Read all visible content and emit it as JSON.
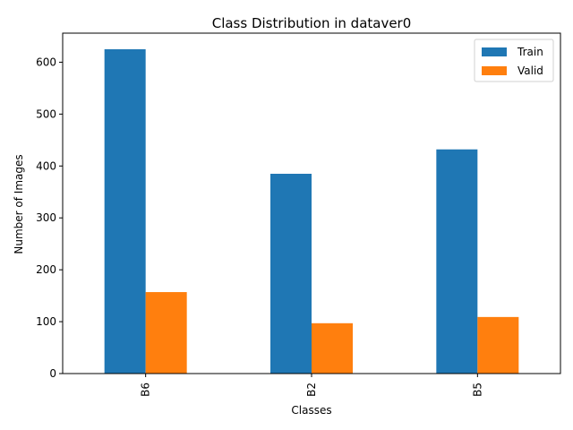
{
  "chart_data": {
    "type": "bar",
    "title": "Class Distribution in dataver0",
    "xlabel": "Classes",
    "ylabel": "Number of Images",
    "categories": [
      "B6",
      "B2",
      "B5"
    ],
    "series": [
      {
        "name": "Train",
        "values": [
          625,
          385,
          432
        ],
        "color": "#1f77b4"
      },
      {
        "name": "Valid",
        "values": [
          157,
          97,
          109
        ],
        "color": "#ff7f0e"
      }
    ],
    "ylim": [
      0,
      656
    ],
    "yticks": [
      0,
      100,
      200,
      300,
      400,
      500,
      600
    ],
    "grid": false,
    "legend_position": "top-right"
  }
}
